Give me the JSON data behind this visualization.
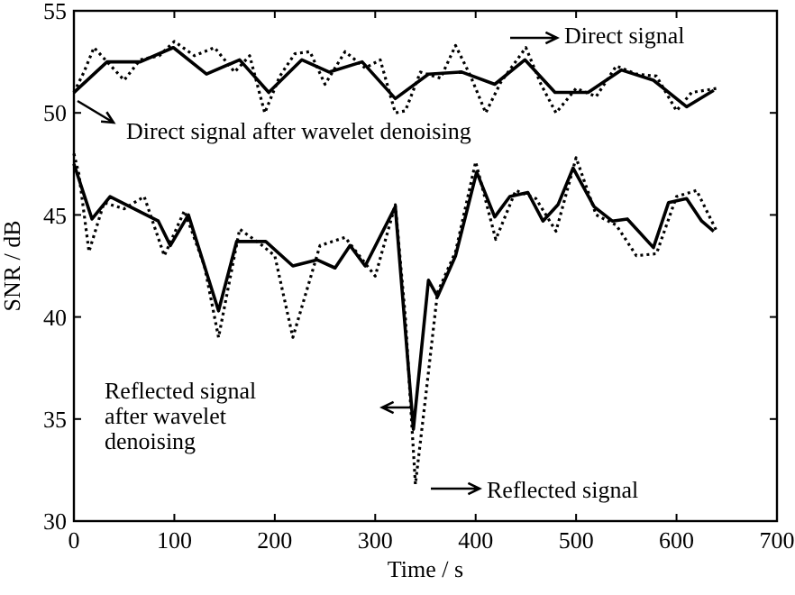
{
  "chart_data": {
    "type": "line",
    "xlabel": "Time / s",
    "ylabel": "SNR / dB",
    "xlim": [
      0,
      700
    ],
    "xticks": [
      0,
      100,
      200,
      300,
      400,
      500,
      600,
      700
    ],
    "ylim": [
      30,
      55
    ],
    "yticks": [
      30,
      35,
      40,
      45,
      50,
      55
    ],
    "grid": false,
    "annotations": [
      "Direct signal",
      "Direct signal after wavelet denoising",
      "Reflected signal",
      "Reflected signal after wavelet denoising"
    ],
    "series": [
      {
        "color": "#000000",
        "line_style": "dotted",
        "x": [
          0,
          10,
          20,
          35,
          50,
          66,
          85,
          100,
          120,
          140,
          160,
          175,
          190,
          205,
          220,
          235,
          250,
          270,
          290,
          305,
          320,
          330,
          345,
          365,
          380,
          395,
          410,
          425,
          450,
          465,
          480,
          500,
          520,
          540,
          560,
          580,
          600,
          615,
          640
        ],
        "values": [
          51.0,
          52.0,
          53.2,
          52.4,
          51.6,
          52.6,
          52.8,
          53.5,
          52.8,
          53.2,
          52.0,
          52.8,
          50.0,
          51.8,
          52.9,
          53.0,
          51.4,
          53.0,
          52.2,
          52.6,
          50.0,
          50.1,
          52.0,
          51.7,
          53.3,
          51.8,
          50.0,
          51.5,
          53.2,
          51.4,
          50.0,
          51.2,
          50.8,
          52.3,
          51.9,
          51.8,
          50.1,
          51.0,
          51.2
        ]
      },
      {
        "color": "#000000",
        "line_style": "solid",
        "x": [
          0,
          33,
          66,
          99,
          132,
          165,
          194,
          227,
          254,
          287,
          320,
          353,
          386,
          419,
          449,
          479,
          512,
          545,
          577,
          610,
          637
        ],
        "values": [
          51.0,
          52.5,
          52.5,
          53.2,
          51.9,
          52.6,
          51.0,
          52.6,
          52.0,
          52.5,
          50.7,
          51.9,
          52.0,
          51.4,
          52.6,
          51.0,
          51.0,
          52.1,
          51.6,
          50.3,
          51.1
        ]
      },
      {
        "color": "#000000",
        "line_style": "dotted",
        "x": [
          0,
          5,
          15,
          30,
          50,
          70,
          90,
          110,
          130,
          144,
          165,
          185,
          200,
          218,
          245,
          270,
          300,
          320,
          330,
          340,
          350,
          362,
          380,
          400,
          420,
          440,
          460,
          480,
          500,
          520,
          540,
          560,
          580,
          600,
          620,
          640
        ],
        "values": [
          48.0,
          47.0,
          43.2,
          45.6,
          45.3,
          45.9,
          43.0,
          45.2,
          42.5,
          39.0,
          44.3,
          43.6,
          43.0,
          39.0,
          43.5,
          43.9,
          42.0,
          45.5,
          40.0,
          31.8,
          36.0,
          41.2,
          43.2,
          47.6,
          43.8,
          46.2,
          45.8,
          44.2,
          47.8,
          45.0,
          44.5,
          43.0,
          43.1,
          45.9,
          46.2,
          44.2
        ]
      },
      {
        "color": "#000000",
        "line_style": "solid",
        "x": [
          0,
          18,
          36,
          84,
          96,
          114,
          144,
          162,
          191,
          218,
          242,
          260,
          275,
          290,
          320,
          338,
          353,
          362,
          380,
          401,
          419,
          434,
          452,
          467,
          482,
          497,
          518,
          536,
          551,
          577,
          592,
          610,
          625,
          637
        ],
        "values": [
          47.5,
          44.8,
          45.9,
          44.7,
          43.5,
          45.0,
          40.3,
          43.7,
          43.7,
          42.5,
          42.8,
          42.4,
          43.5,
          42.5,
          45.4,
          34.5,
          41.8,
          41.0,
          43.0,
          47.1,
          44.9,
          45.9,
          46.1,
          44.7,
          45.5,
          47.3,
          45.4,
          44.7,
          44.8,
          43.4,
          45.6,
          45.8,
          44.7,
          44.2
        ]
      }
    ]
  }
}
